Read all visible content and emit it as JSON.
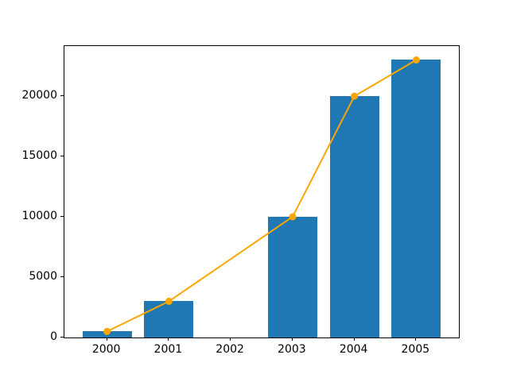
{
  "chart_data": {
    "type": "combo",
    "title": "",
    "xlabel": "",
    "ylabel": "",
    "grid": false,
    "legend": "none",
    "categories": [
      2000,
      2001,
      2002,
      2003,
      2004,
      2005
    ],
    "x_tick_labels": [
      "2000",
      "2001",
      "2002",
      "2003",
      "2004",
      "2005"
    ],
    "y_tick_values": [
      0,
      5000,
      10000,
      15000,
      20000
    ],
    "y_tick_labels": [
      "0",
      "5000",
      "10000",
      "15000",
      "20000"
    ],
    "xlim": [
      1999.31,
      2005.69
    ],
    "ylim": [
      0,
      24150
    ],
    "series": [
      {
        "name": "bar-series",
        "type": "bar",
        "color": "#1f77b4",
        "bar_width": 0.8,
        "points": [
          {
            "x": 2000,
            "y": 500
          },
          {
            "x": 2001,
            "y": 3000
          },
          {
            "x": 2003,
            "y": 10000
          },
          {
            "x": 2004,
            "y": 20000
          },
          {
            "x": 2005,
            "y": 23000
          }
        ]
      },
      {
        "name": "line-series",
        "type": "line",
        "color": "#ffa500",
        "line_width": 2,
        "marker": "circle",
        "marker_size": 9,
        "points": [
          {
            "x": 2000,
            "y": 500
          },
          {
            "x": 2001,
            "y": 3000
          },
          {
            "x": 2003,
            "y": 10000
          },
          {
            "x": 2004,
            "y": 20000
          },
          {
            "x": 2005,
            "y": 23000
          }
        ]
      }
    ]
  }
}
